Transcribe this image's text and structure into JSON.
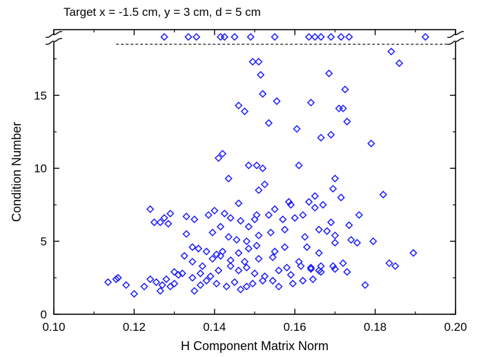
{
  "chart_data": {
    "type": "scatter",
    "title": "Target  x = -1.5 cm, y = 3 cm, d = 5 cm",
    "xlabel": "H Component Matrix Norm",
    "ylabel": "Condition Number",
    "xlim": [
      0.1,
      0.2
    ],
    "ylim": [
      0,
      19.5
    ],
    "y_axis_break": true,
    "x_ticks": [
      "0.10",
      "0.12",
      "0.14",
      "0.16",
      "0.18",
      "0.20"
    ],
    "y_ticks": [
      "0",
      "5",
      "10",
      "15"
    ],
    "threshold_line": {
      "y": 18.5,
      "x_range": [
        0.1155,
        0.2
      ],
      "style": "dashed",
      "color": "#000000"
    },
    "marker": {
      "shape": "diamond",
      "color": "#1a1aff",
      "filled": false
    },
    "series": [
      {
        "points": [
          [
            0.1275,
            19.0
          ],
          [
            0.1335,
            19.0
          ],
          [
            0.1355,
            19.0
          ],
          [
            0.1415,
            19.0
          ],
          [
            0.1425,
            19.0
          ],
          [
            0.145,
            19.0
          ],
          [
            0.149,
            19.0
          ],
          [
            0.155,
            19.0
          ],
          [
            0.1635,
            19.0
          ],
          [
            0.165,
            19.0
          ],
          [
            0.1665,
            19.0
          ],
          [
            0.169,
            19.0
          ],
          [
            0.1715,
            19.0
          ],
          [
            0.1735,
            19.0
          ],
          [
            0.1925,
            19.0
          ],
          [
            0.184,
            18.0
          ],
          [
            0.186,
            17.2
          ],
          [
            0.1495,
            17.3
          ],
          [
            0.151,
            17.3
          ],
          [
            0.1515,
            16.4
          ],
          [
            0.1685,
            16.5
          ],
          [
            0.1725,
            15.4
          ],
          [
            0.152,
            15.1
          ],
          [
            0.1555,
            14.6
          ],
          [
            0.164,
            14.5
          ],
          [
            0.146,
            14.3
          ],
          [
            0.1475,
            13.9
          ],
          [
            0.171,
            14.1
          ],
          [
            0.172,
            14.1
          ],
          [
            0.1535,
            13.1
          ],
          [
            0.173,
            13.2
          ],
          [
            0.1605,
            12.7
          ],
          [
            0.1665,
            12.1
          ],
          [
            0.169,
            12.3
          ],
          [
            0.179,
            11.7
          ],
          [
            0.142,
            11.0
          ],
          [
            0.141,
            10.7
          ],
          [
            0.1485,
            10.2
          ],
          [
            0.1505,
            10.2
          ],
          [
            0.152,
            10.0
          ],
          [
            0.161,
            10.2
          ],
          [
            0.1435,
            9.3
          ],
          [
            0.17,
            9.3
          ],
          [
            0.151,
            8.5
          ],
          [
            0.1525,
            8.9
          ],
          [
            0.1695,
            8.6
          ],
          [
            0.165,
            8.1
          ],
          [
            0.182,
            8.2
          ],
          [
            0.1635,
            7.7
          ],
          [
            0.1585,
            7.7
          ],
          [
            0.146,
            7.6
          ],
          [
            0.159,
            7.5
          ],
          [
            0.1715,
            8.0
          ],
          [
            0.124,
            7.2
          ],
          [
            0.129,
            6.9
          ],
          [
            0.1275,
            6.6
          ],
          [
            0.1265,
            6.3
          ],
          [
            0.1285,
            6.2
          ],
          [
            0.125,
            6.3
          ],
          [
            0.133,
            6.7
          ],
          [
            0.135,
            6.5
          ],
          [
            0.1385,
            6.8
          ],
          [
            0.14,
            7.1
          ],
          [
            0.1425,
            6.9
          ],
          [
            0.1415,
            6.0
          ],
          [
            0.144,
            6.6
          ],
          [
            0.1465,
            6.4
          ],
          [
            0.1485,
            6.0
          ],
          [
            0.15,
            6.5
          ],
          [
            0.1505,
            6.8
          ],
          [
            0.1535,
            6.8
          ],
          [
            0.155,
            7.2
          ],
          [
            0.157,
            6.5
          ],
          [
            0.16,
            6.6
          ],
          [
            0.162,
            6.8
          ],
          [
            0.165,
            7.3
          ],
          [
            0.167,
            7.5
          ],
          [
            0.169,
            6.3
          ],
          [
            0.176,
            6.8
          ],
          [
            0.1735,
            6.1
          ],
          [
            0.166,
            5.8
          ],
          [
            0.133,
            5.5
          ],
          [
            0.1395,
            5.6
          ],
          [
            0.1435,
            5.3
          ],
          [
            0.1455,
            5.1
          ],
          [
            0.148,
            5.0
          ],
          [
            0.151,
            5.4
          ],
          [
            0.154,
            5.6
          ],
          [
            0.1575,
            5.8
          ],
          [
            0.1625,
            5.3
          ],
          [
            0.168,
            5.7
          ],
          [
            0.17,
            5.4
          ],
          [
            0.174,
            5.1
          ],
          [
            0.1795,
            5.0
          ],
          [
            0.1755,
            4.9
          ],
          [
            0.1345,
            4.6
          ],
          [
            0.136,
            4.5
          ],
          [
            0.138,
            4.3
          ],
          [
            0.1405,
            4.1
          ],
          [
            0.142,
            4.3
          ],
          [
            0.146,
            4.2
          ],
          [
            0.1485,
            4.5
          ],
          [
            0.1505,
            4.7
          ],
          [
            0.155,
            4.3
          ],
          [
            0.1575,
            4.6
          ],
          [
            0.163,
            4.6
          ],
          [
            0.166,
            4.2
          ],
          [
            0.17,
            4.9
          ],
          [
            0.1325,
            4.0
          ],
          [
            0.1345,
            3.6
          ],
          [
            0.137,
            3.3
          ],
          [
            0.1395,
            3.8
          ],
          [
            0.1415,
            4.0
          ],
          [
            0.144,
            3.7
          ],
          [
            0.1475,
            3.6
          ],
          [
            0.151,
            3.8
          ],
          [
            0.1545,
            3.9
          ],
          [
            0.158,
            3.2
          ],
          [
            0.161,
            3.6
          ],
          [
            0.164,
            3.2
          ],
          [
            0.1665,
            3.3
          ],
          [
            0.172,
            3.5
          ],
          [
            0.1835,
            3.5
          ],
          [
            0.185,
            3.3
          ],
          [
            0.1895,
            4.2
          ],
          [
            0.13,
            2.9
          ],
          [
            0.131,
            2.7
          ],
          [
            0.132,
            2.8
          ],
          [
            0.1345,
            2.5
          ],
          [
            0.1365,
            2.8
          ],
          [
            0.139,
            2.6
          ],
          [
            0.141,
            3.0
          ],
          [
            0.144,
            3.3
          ],
          [
            0.146,
            3.0
          ],
          [
            0.148,
            3.2
          ],
          [
            0.15,
            2.8
          ],
          [
            0.1525,
            2.6
          ],
          [
            0.156,
            3.0
          ],
          [
            0.159,
            2.7
          ],
          [
            0.1615,
            3.3
          ],
          [
            0.164,
            3.1
          ],
          [
            0.166,
            3.0
          ],
          [
            0.17,
            3.1
          ],
          [
            0.173,
            2.9
          ],
          [
            0.1155,
            2.4
          ],
          [
            0.118,
            2.0
          ],
          [
            0.12,
            1.4
          ],
          [
            0.1225,
            1.9
          ],
          [
            0.124,
            2.4
          ],
          [
            0.1255,
            2.2
          ],
          [
            0.1265,
            1.6
          ],
          [
            0.128,
            2.4
          ],
          [
            0.129,
            1.9
          ],
          [
            0.13,
            2.1
          ],
          [
            0.127,
            2.0
          ],
          [
            0.135,
            1.6
          ],
          [
            0.1365,
            2.0
          ],
          [
            0.138,
            2.3
          ],
          [
            0.1405,
            2.1
          ],
          [
            0.143,
            1.9
          ],
          [
            0.145,
            2.2
          ],
          [
            0.1465,
            1.7
          ],
          [
            0.148,
            1.9
          ],
          [
            0.1495,
            2.1
          ],
          [
            0.152,
            2.3
          ],
          [
            0.1545,
            2.3
          ],
          [
            0.156,
            1.9
          ],
          [
            0.1595,
            2.1
          ],
          [
            0.162,
            2.3
          ],
          [
            0.1645,
            2.4
          ],
          [
            0.1665,
            2.9
          ],
          [
            0.1695,
            3.3
          ],
          [
            0.1775,
            2.0
          ],
          [
            0.116,
            2.5
          ],
          [
            0.1135,
            2.2
          ]
        ]
      }
    ]
  }
}
